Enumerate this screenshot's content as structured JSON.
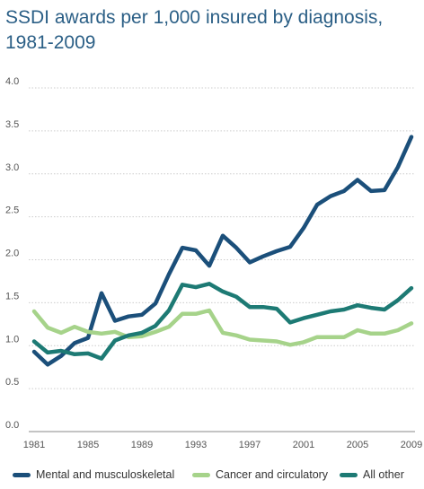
{
  "title_lines": [
    "SSDI awards per 1,000 insured by diagnosis,",
    "1981-2009"
  ],
  "chart_data": {
    "type": "line",
    "title": "SSDI awards per 1,000 insured by diagnosis, 1981-2009",
    "x": [
      1981,
      1982,
      1983,
      1984,
      1985,
      1986,
      1987,
      1988,
      1989,
      1990,
      1991,
      1992,
      1993,
      1994,
      1995,
      1996,
      1997,
      1998,
      1999,
      2000,
      2001,
      2002,
      2003,
      2004,
      2005,
      2006,
      2007,
      2008,
      2009
    ],
    "xticks": [
      "1981",
      "1985",
      "1989",
      "1993",
      "1997",
      "2001",
      "2005",
      "2009"
    ],
    "yticks": [
      "0.0",
      "0.5",
      "1.0",
      "1.5",
      "2.0",
      "2.5",
      "3.0",
      "3.5",
      "4.0"
    ],
    "ylim": [
      0,
      4
    ],
    "grid": "horizontal",
    "legend_position": "bottom",
    "series": [
      {
        "name": "Mental and musculoskeletal",
        "color": "#1b4f7a",
        "values": [
          0.93,
          0.78,
          0.88,
          1.03,
          1.09,
          1.61,
          1.29,
          1.34,
          1.36,
          1.49,
          1.83,
          2.14,
          2.11,
          1.93,
          2.28,
          2.14,
          1.97,
          2.04,
          2.1,
          2.15,
          2.37,
          2.64,
          2.74,
          2.8,
          2.93,
          2.8,
          2.81,
          3.08,
          3.43
        ]
      },
      {
        "name": "Cancer and circulatory",
        "color": "#a6d38a",
        "values": [
          1.4,
          1.21,
          1.15,
          1.22,
          1.16,
          1.14,
          1.16,
          1.1,
          1.11,
          1.16,
          1.22,
          1.37,
          1.37,
          1.41,
          1.15,
          1.12,
          1.07,
          1.06,
          1.05,
          1.01,
          1.04,
          1.1,
          1.1,
          1.1,
          1.18,
          1.14,
          1.14,
          1.18,
          1.26
        ]
      },
      {
        "name": "All other",
        "color": "#1d7a74",
        "values": [
          1.05,
          0.92,
          0.94,
          0.9,
          0.91,
          0.85,
          1.06,
          1.12,
          1.15,
          1.23,
          1.41,
          1.71,
          1.68,
          1.72,
          1.63,
          1.57,
          1.45,
          1.45,
          1.43,
          1.27,
          1.32,
          1.36,
          1.4,
          1.42,
          1.47,
          1.44,
          1.42,
          1.53,
          1.67
        ]
      }
    ]
  }
}
